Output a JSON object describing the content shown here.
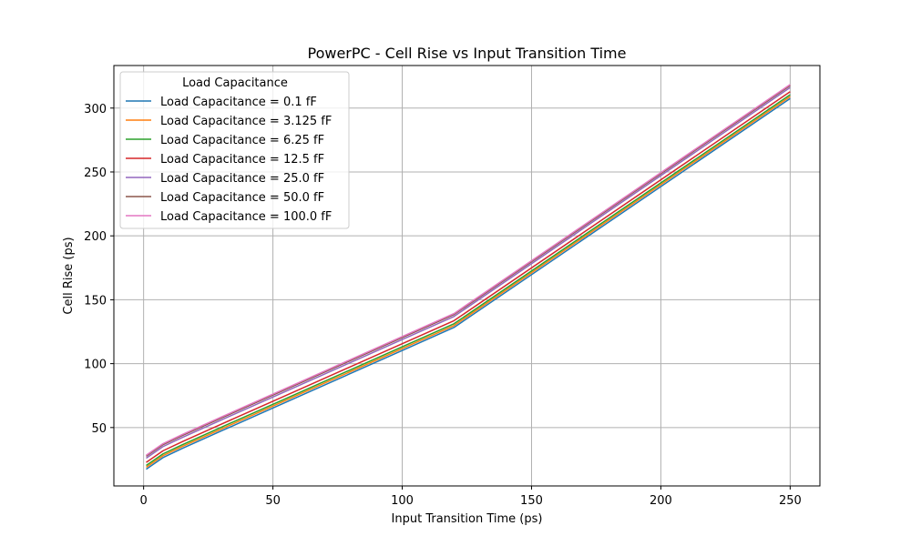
{
  "chart_data": {
    "type": "line",
    "title": "PowerPC - Cell Rise vs Input Transition Time",
    "xlabel": "Input Transition Time (ps)",
    "ylabel": "Cell Rise (ps)",
    "xlim": [
      -11.5,
      261.5
    ],
    "ylim": [
      4.3,
      333.3
    ],
    "xticks": [
      0,
      50,
      100,
      150,
      200,
      250
    ],
    "yticks": [
      50,
      100,
      150,
      200,
      250,
      300
    ],
    "grid": true,
    "legend": {
      "title": "Load Capacitance",
      "placement": "top-left"
    },
    "x": [
      1,
      7.5,
      15,
      30,
      60,
      120,
      250
    ],
    "series": [
      {
        "name": "Load Capacitance = 0.1 fF",
        "color": "#1f77b4",
        "values": [
          17.4,
          26.5,
          33.7,
          47.3,
          74.3,
          128.3,
          307.5
        ]
      },
      {
        "name": "Load Capacitance = 3.125 fF",
        "color": "#ff7f0e",
        "values": [
          18.9,
          28.0,
          35.2,
          48.8,
          75.8,
          129.8,
          309.0
        ]
      },
      {
        "name": "Load Capacitance = 6.25 fF",
        "color": "#2ca02c",
        "values": [
          20.3,
          29.4,
          36.6,
          50.2,
          77.2,
          131.2,
          310.4
        ]
      },
      {
        "name": "Load Capacitance = 12.5 fF",
        "color": "#d62728",
        "values": [
          22.7,
          31.8,
          39.0,
          52.6,
          79.6,
          133.6,
          312.8
        ]
      },
      {
        "name": "Load Capacitance = 25.0 fF",
        "color": "#9467bd",
        "values": [
          26.0,
          35.1,
          42.3,
          55.9,
          82.9,
          136.9,
          316.1
        ]
      },
      {
        "name": "Load Capacitance = 50.0 fF",
        "color": "#8c564b",
        "values": [
          27.5,
          36.6,
          43.8,
          57.4,
          84.4,
          138.4,
          317.6
        ]
      },
      {
        "name": "Load Capacitance = 100.0 fF",
        "color": "#e377c2",
        "values": [
          28.3,
          37.4,
          44.6,
          58.2,
          85.2,
          139.2,
          318.4
        ]
      }
    ]
  }
}
